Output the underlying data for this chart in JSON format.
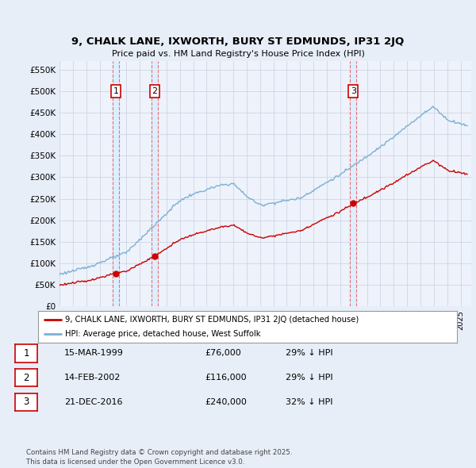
{
  "title": "9, CHALK LANE, IXWORTH, BURY ST EDMUNDS, IP31 2JQ",
  "subtitle": "Price paid vs. HM Land Registry's House Price Index (HPI)",
  "ylabel_ticks": [
    "£0",
    "£50K",
    "£100K",
    "£150K",
    "£200K",
    "£250K",
    "£300K",
    "£350K",
    "£400K",
    "£450K",
    "£500K",
    "£550K"
  ],
  "ytick_values": [
    0,
    50000,
    100000,
    150000,
    200000,
    250000,
    300000,
    350000,
    400000,
    450000,
    500000,
    550000
  ],
  "ylim": [
    0,
    570000
  ],
  "xlim_start": 1995.0,
  "xlim_end": 2025.8,
  "sale_dates": [
    1999.21,
    2002.12,
    2016.97
  ],
  "sale_prices": [
    76000,
    116000,
    240000
  ],
  "sale_labels": [
    "1",
    "2",
    "3"
  ],
  "red_line_color": "#cc0000",
  "blue_line_color": "#7ab0d4",
  "marker_box_color": "#cc0000",
  "vline_color": "#e87070",
  "shade_color": "#ddeeff",
  "legend_line_red": "#cc0000",
  "legend_line_blue": "#7ab0d4",
  "legend_entries": [
    "9, CHALK LANE, IXWORTH, BURY ST EDMUNDS, IP31 2JQ (detached house)",
    "HPI: Average price, detached house, West Suffolk"
  ],
  "table_data": [
    [
      "1",
      "15-MAR-1999",
      "£76,000",
      "29% ↓ HPI"
    ],
    [
      "2",
      "14-FEB-2002",
      "£116,000",
      "29% ↓ HPI"
    ],
    [
      "3",
      "21-DEC-2016",
      "£240,000",
      "32% ↓ HPI"
    ]
  ],
  "footer_text": "Contains HM Land Registry data © Crown copyright and database right 2025.\nThis data is licensed under the Open Government Licence v3.0.",
  "background_color": "#e8eef8",
  "plot_bg_color": "#eef2fb"
}
